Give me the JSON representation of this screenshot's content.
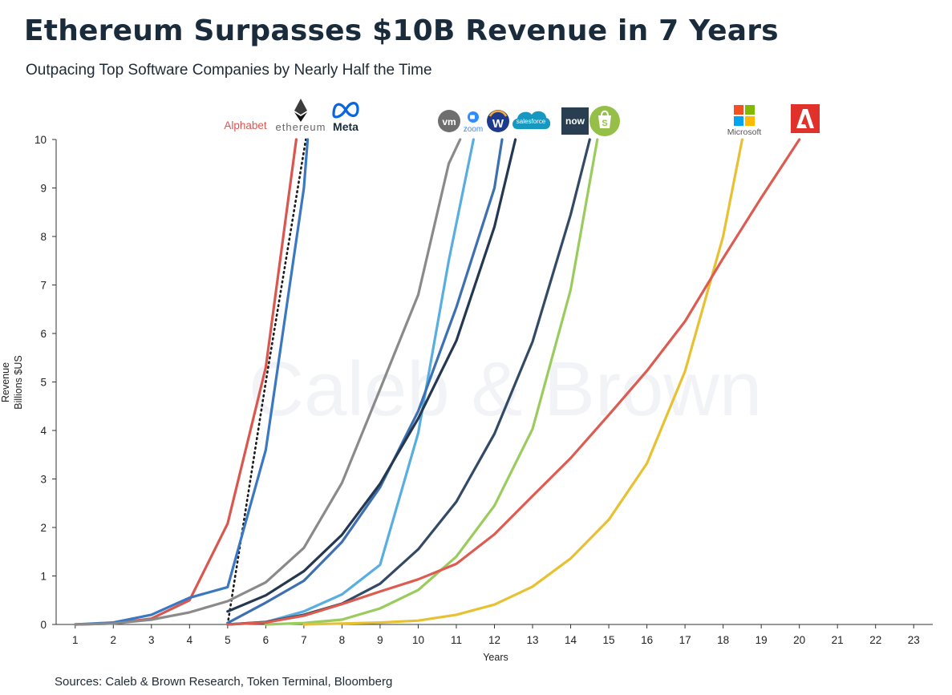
{
  "title": "Ethereum Surpasses $10B Revenue in 7 Years",
  "subtitle": "Outpacing Top Software Companies by Nearly Half the Time",
  "source": "Sources: Caleb & Brown Research, Token Terminal, Bloomberg",
  "watermark": "Caleb & Brown",
  "logos": {
    "alphabet": "Alphabet",
    "ethereum": "ethereum",
    "meta": "Meta",
    "vmware": "vm",
    "zoom": "zoom",
    "workday": "W",
    "salesforce": "salesforce",
    "servicenow": "now",
    "microsoft": "Microsoft"
  },
  "chart_data": {
    "type": "line",
    "title": "Ethereum Surpasses $10B Revenue in 7 Years",
    "xlabel": "Years",
    "ylabel": "Revenue Billions $US",
    "ylabel_lines": [
      "Revenue",
      "Billions $US"
    ],
    "xlim": [
      0.5,
      23.5
    ],
    "ylim": [
      0,
      10
    ],
    "x_ticks": [
      "1",
      "2",
      "3",
      "4",
      "5",
      "6",
      "7",
      "8",
      "9",
      "10",
      "11",
      "12",
      "13",
      "14",
      "15",
      "16",
      "17",
      "18",
      "19",
      "20",
      "21",
      "22",
      "23"
    ],
    "y_ticks": [
      "0",
      "1",
      "2",
      "3",
      "4",
      "5",
      "6",
      "7",
      "8",
      "9",
      "10"
    ],
    "series": [
      {
        "name": "Alphabet",
        "color": "#d9574f",
        "dash": false,
        "x": [
          1,
          2,
          3,
          4,
          5,
          6,
          6.8
        ],
        "y": [
          0.0,
          0.02,
          0.12,
          0.5,
          2.08,
          5.3,
          10.0
        ]
      },
      {
        "name": "Ethereum",
        "color": "#1a1a1a",
        "dash": true,
        "x": [
          5,
          6,
          7.05
        ],
        "y": [
          0.0,
          5.0,
          10.0
        ]
      },
      {
        "name": "Meta",
        "color": "#3a78c2",
        "dash": false,
        "x": [
          1,
          2,
          3,
          4,
          5,
          6,
          7,
          7.1
        ],
        "y": [
          0.0,
          0.04,
          0.2,
          0.55,
          0.77,
          3.6,
          9.0,
          10.0
        ]
      },
      {
        "name": "VMware",
        "color": "#8a8a8a",
        "dash": false,
        "x": [
          1,
          2,
          3,
          4,
          5,
          6,
          7,
          8,
          9,
          10,
          10.8,
          11.1
        ],
        "y": [
          0.0,
          0.02,
          0.1,
          0.25,
          0.48,
          0.87,
          1.58,
          2.92,
          4.85,
          6.8,
          9.5,
          10.0
        ]
      },
      {
        "name": "Zoom",
        "color": "#58aee0",
        "dash": false,
        "x": [
          5,
          6,
          7,
          8,
          9,
          10,
          10.8,
          11.45
        ],
        "y": [
          0.0,
          0.05,
          0.27,
          0.62,
          1.23,
          3.95,
          7.5,
          10.0
        ]
      },
      {
        "name": "Workday",
        "color": "#3d70b0",
        "dash": false,
        "x": [
          5,
          6,
          7,
          8,
          9,
          10,
          11,
          12,
          12.2
        ],
        "y": [
          0.03,
          0.45,
          0.9,
          1.7,
          2.83,
          4.4,
          6.54,
          9.0,
          10.0
        ]
      },
      {
        "name": "Salesforce",
        "color": "#243852",
        "dash": false,
        "x": [
          5,
          6,
          7,
          8,
          9,
          10,
          11,
          12,
          12.55
        ],
        "y": [
          0.27,
          0.6,
          1.1,
          1.85,
          2.9,
          4.25,
          5.85,
          8.2,
          10.0
        ]
      },
      {
        "name": "ServiceNow",
        "color": "#334a66",
        "dash": false,
        "x": [
          5,
          6,
          7,
          8,
          9,
          10,
          11,
          12,
          13,
          14,
          14.5
        ],
        "y": [
          0.0,
          0.05,
          0.2,
          0.43,
          0.84,
          1.55,
          2.53,
          3.93,
          5.83,
          8.45,
          10.0
        ]
      },
      {
        "name": "Shopify",
        "color": "#9acb5d",
        "dash": false,
        "x": [
          6,
          7,
          8,
          9,
          10,
          11,
          12,
          13,
          14,
          14.7
        ],
        "y": [
          0.0,
          0.03,
          0.1,
          0.33,
          0.71,
          1.4,
          2.45,
          4.03,
          6.9,
          10.0
        ]
      },
      {
        "name": "Microsoft",
        "color": "#e8c132",
        "dash": false,
        "x": [
          7,
          8,
          9,
          10,
          11,
          12,
          13,
          14,
          15,
          16,
          17,
          18,
          18.5
        ],
        "y": [
          0.0,
          0.02,
          0.04,
          0.08,
          0.2,
          0.41,
          0.78,
          1.36,
          2.16,
          3.32,
          5.22,
          8.0,
          10.0
        ]
      },
      {
        "name": "Adobe",
        "color": "#dc5c52",
        "dash": false,
        "x": [
          5,
          6,
          7,
          8,
          9,
          10,
          11,
          12,
          13,
          14,
          15,
          16,
          17,
          18,
          19,
          20
        ],
        "y": [
          0.0,
          0.04,
          0.18,
          0.42,
          0.68,
          0.93,
          1.25,
          1.86,
          2.65,
          3.43,
          4.32,
          5.23,
          6.25,
          7.55,
          8.8,
          10.0
        ]
      }
    ]
  }
}
